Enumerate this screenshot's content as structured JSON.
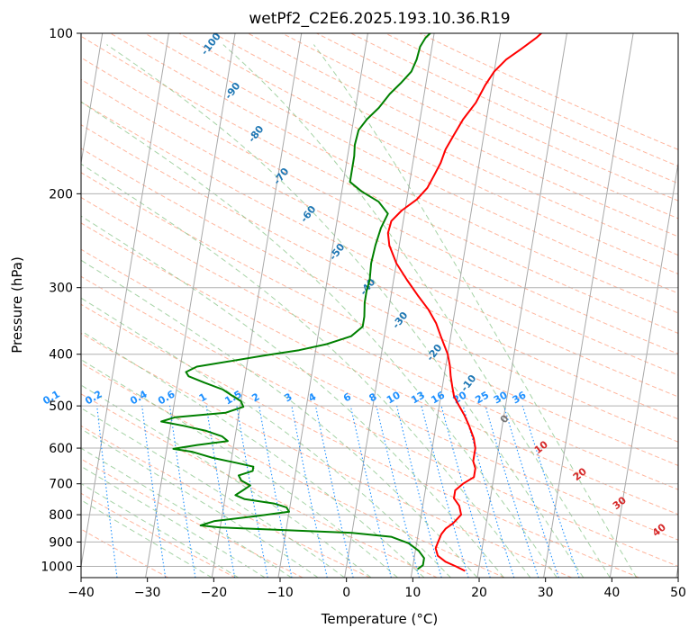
{
  "chart_data": {
    "type": "line",
    "title": "wetPf2_C2E6.2025.193.10.36.R19",
    "xlabel": "Temperature (°C)",
    "ylabel": "Pressure (hPa)",
    "xlim": [
      -40,
      50
    ],
    "ylim": [
      1050,
      100
    ],
    "y_scale": "log",
    "grid": true,
    "x_ticks": [
      -40,
      -30,
      -20,
      -10,
      0,
      10,
      20,
      30,
      40,
      50
    ],
    "x_tick_labels": [
      "−40",
      "−30",
      "−20",
      "−10",
      "0",
      "10",
      "20",
      "30",
      "40",
      "50"
    ],
    "y_ticks": [
      100,
      200,
      300,
      400,
      500,
      600,
      700,
      800,
      900,
      1000
    ],
    "y_tick_labels": [
      "100",
      "200",
      "300",
      "400",
      "500",
      "600",
      "700",
      "800",
      "900",
      "1000"
    ],
    "series": [
      {
        "color": "#ff0000",
        "points": [
          [
            18.0,
            1020
          ],
          [
            16.5,
            1000
          ],
          [
            14.8,
            980
          ],
          [
            13.5,
            955
          ],
          [
            13.0,
            925
          ],
          [
            13.2,
            900
          ],
          [
            13.5,
            870
          ],
          [
            14.0,
            850
          ],
          [
            15.0,
            830
          ],
          [
            16.0,
            800
          ],
          [
            15.5,
            770
          ],
          [
            14.5,
            745
          ],
          [
            14.5,
            720
          ],
          [
            15.5,
            700
          ],
          [
            17.0,
            680
          ],
          [
            17.0,
            655
          ],
          [
            16.5,
            635
          ],
          [
            16.5,
            600
          ],
          [
            16.0,
            575
          ],
          [
            15.0,
            545
          ],
          [
            14.0,
            520
          ],
          [
            13.0,
            500
          ],
          [
            12.0,
            480
          ],
          [
            11.5,
            460
          ],
          [
            11.0,
            440
          ],
          [
            10.6,
            420
          ],
          [
            10.0,
            400
          ],
          [
            8.5,
            370
          ],
          [
            7.5,
            350
          ],
          [
            6.0,
            330
          ],
          [
            4.0,
            310
          ],
          [
            2.0,
            290
          ],
          [
            0.0,
            270
          ],
          [
            -1.5,
            250
          ],
          [
            -2.0,
            237
          ],
          [
            -1.8,
            225
          ],
          [
            -0.5,
            215
          ],
          [
            1.5,
            205
          ],
          [
            2.8,
            195
          ],
          [
            3.5,
            185
          ],
          [
            4.2,
            175
          ],
          [
            4.6,
            165
          ],
          [
            5.5,
            155
          ],
          [
            6.5,
            145
          ],
          [
            8.0,
            135
          ],
          [
            9.0,
            125
          ],
          [
            10.0,
            118
          ],
          [
            11.5,
            112
          ],
          [
            13.5,
            107
          ],
          [
            15.5,
            102
          ],
          [
            16.8,
            98
          ]
        ]
      },
      {
        "color": "#008000",
        "points": [
          [
            10.8,
            1012
          ],
          [
            11.5,
            995
          ],
          [
            11.5,
            965
          ],
          [
            10.5,
            935
          ],
          [
            8.8,
            905
          ],
          [
            6.0,
            880
          ],
          [
            0.0,
            865
          ],
          [
            -10.0,
            855
          ],
          [
            -20.0,
            845
          ],
          [
            -23.0,
            838
          ],
          [
            -21.0,
            822
          ],
          [
            -15.0,
            805
          ],
          [
            -10.0,
            790
          ],
          [
            -10.5,
            775
          ],
          [
            -12.5,
            762
          ],
          [
            -17.0,
            748
          ],
          [
            -18.5,
            735
          ],
          [
            -17.5,
            720
          ],
          [
            -16.5,
            705
          ],
          [
            -18.0,
            690
          ],
          [
            -18.5,
            675
          ],
          [
            -16.5,
            662
          ],
          [
            -16.5,
            650
          ],
          [
            -19.0,
            640
          ],
          [
            -23.0,
            625
          ],
          [
            -26.0,
            610
          ],
          [
            -29.0,
            602
          ],
          [
            -25.5,
            592
          ],
          [
            -21.0,
            582
          ],
          [
            -22.0,
            570
          ],
          [
            -24.5,
            557
          ],
          [
            -28.0,
            545
          ],
          [
            -31.5,
            535
          ],
          [
            -29.5,
            525
          ],
          [
            -22.0,
            515
          ],
          [
            -19.5,
            502
          ],
          [
            -20.0,
            490
          ],
          [
            -21.5,
            478
          ],
          [
            -23.0,
            466
          ],
          [
            -26.0,
            452
          ],
          [
            -28.5,
            440
          ],
          [
            -29.0,
            432
          ],
          [
            -27.5,
            422
          ],
          [
            -22.5,
            412
          ],
          [
            -17.5,
            402
          ],
          [
            -12.5,
            393
          ],
          [
            -8.5,
            383
          ],
          [
            -5.0,
            370
          ],
          [
            -3.5,
            355
          ],
          [
            -3.5,
            340
          ],
          [
            -3.8,
            320
          ],
          [
            -3.8,
            305
          ],
          [
            -3.6,
            290
          ],
          [
            -3.8,
            270
          ],
          [
            -3.6,
            250
          ],
          [
            -3.2,
            232
          ],
          [
            -2.5,
            218
          ],
          [
            -4.2,
            207
          ],
          [
            -7.0,
            198
          ],
          [
            -9.0,
            190
          ],
          [
            -9.0,
            180
          ],
          [
            -9.0,
            170
          ],
          [
            -9.2,
            162
          ],
          [
            -9.0,
            152
          ],
          [
            -8.0,
            145
          ],
          [
            -6.5,
            138
          ],
          [
            -5.2,
            130
          ],
          [
            -3.8,
            124
          ],
          [
            -2.5,
            118
          ],
          [
            -2.0,
            112
          ],
          [
            -1.8,
            106
          ],
          [
            -1.2,
            102
          ],
          [
            0.0,
            98
          ]
        ]
      }
    ],
    "annotations": {
      "temperature_labels": [
        "-100",
        "-90",
        "-80",
        "-70",
        "-60",
        "-50",
        "-40",
        "-30",
        "-20",
        "-10"
      ],
      "mixing_ratio_labels": [
        "0.1",
        "0.2",
        "0.4",
        "0.6",
        "1",
        "1.5",
        "2",
        "3",
        "4",
        "6",
        "8",
        "10",
        "13",
        "16",
        "20",
        "25",
        "30",
        "36"
      ],
      "zero_label": "0",
      "red_labels": [
        "10",
        "20",
        "30",
        "40"
      ]
    }
  },
  "colors": {
    "temperature": "#ff0000",
    "dewpoint": "#008000",
    "isotherm_label": "#1f77b4",
    "mixing_ratio": "#1e90ff",
    "dry_adiabat": "#ff9d7e",
    "moist_adiabat": "#80c080",
    "skew_isotherm": "#999999",
    "red_label": "#d62728"
  }
}
